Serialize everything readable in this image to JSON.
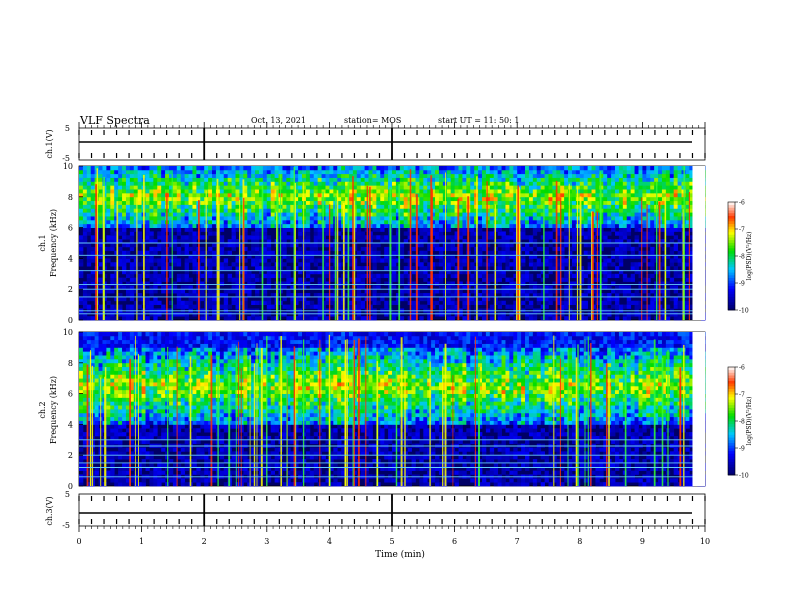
{
  "header": {
    "title": "VLF Spectra",
    "date": "Oct. 13, 2021",
    "station": "station= MOS",
    "start": "start  UT =   11: 50: 1"
  },
  "chart_data": [
    {
      "type": "line",
      "name": "ch1-voltage",
      "ylabel": "ch.1(V)",
      "ylim": [
        -5,
        5
      ],
      "yticks": [
        "5",
        "-5"
      ],
      "x": [
        0,
        10
      ],
      "y": [
        0,
        0
      ]
    },
    {
      "type": "heatmap",
      "name": "ch1-spectrogram",
      "ylabel": "ch.1\nFrequency (kHz)",
      "ylim": [
        0,
        10
      ],
      "yticks": [
        "10",
        "8",
        "6",
        "4",
        "2",
        "0"
      ],
      "xlim": [
        0,
        10
      ],
      "colorbar": {
        "label": "log(PSD)(V²/Hz)",
        "range": [
          -10,
          -6
        ],
        "ticks": [
          "-6",
          "-7",
          "-8",
          "-9",
          "-10"
        ]
      },
      "band_kHz": [
        6,
        10
      ],
      "hum_lines_kHz": [
        0.4,
        0.6,
        1.5,
        2.0,
        2.3,
        3.2,
        4.2,
        5.0
      ]
    },
    {
      "type": "heatmap",
      "name": "ch2-spectrogram",
      "ylabel": "ch.2\nFrequency (kHz)",
      "ylim": [
        0,
        10
      ],
      "yticks": [
        "10",
        "8",
        "6",
        "4",
        "2",
        "0"
      ],
      "xlim": [
        0,
        10
      ],
      "colorbar": {
        "label": "log(PSD)(V²/Hz)",
        "range": [
          -10,
          -6
        ],
        "ticks": [
          "-6",
          "-7",
          "-8",
          "-9",
          "-10"
        ]
      },
      "band_kHz": [
        4,
        9
      ],
      "hum_lines_kHz": [
        0.6,
        1.2,
        1.5,
        2.0,
        2.6,
        3.0
      ]
    },
    {
      "type": "line",
      "name": "ch3-voltage",
      "ylabel": "ch.3(V)",
      "ylim": [
        -5,
        5
      ],
      "yticks": [
        "5",
        "-5"
      ],
      "x": [
        0,
        10
      ],
      "y": [
        -1.2,
        -1.2
      ]
    }
  ],
  "xaxis": {
    "label": "Time (min)",
    "ticks": [
      "0",
      "1",
      "2",
      "3",
      "4",
      "5",
      "6",
      "7",
      "8",
      "9",
      "10"
    ]
  },
  "colors": {
    "background": "#000066",
    "hum": "#66ccff"
  }
}
